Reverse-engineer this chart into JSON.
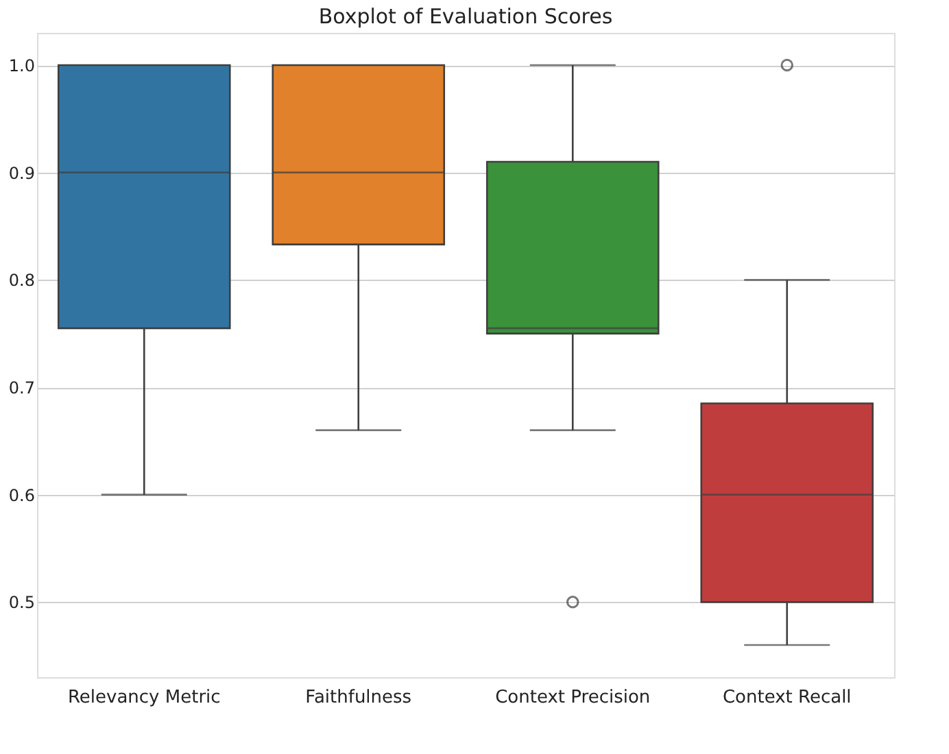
{
  "chart_data": {
    "type": "box",
    "title": "Boxplot of Evaluation Scores",
    "categories": [
      "Relevancy Metric",
      "Faithfulness",
      "Context Precision",
      "Context Recall"
    ],
    "colors": [
      "#3274a1",
      "#e1812c",
      "#3a923a",
      "#c03d3e"
    ],
    "boxes": [
      {
        "low": 0.6,
        "q1": 0.755,
        "median": 0.9,
        "q3": 1.0,
        "high": 1.0
      },
      {
        "low": 0.66,
        "q1": 0.833,
        "median": 0.9,
        "q3": 1.0,
        "high": 1.0
      },
      {
        "low": 0.66,
        "q1": 0.75,
        "median": 0.755,
        "q3": 0.91,
        "high": 1.0,
        "outliers": [
          0.5
        ]
      },
      {
        "low": 0.46,
        "q1": 0.5,
        "median": 0.6,
        "q3": 0.685,
        "high": 0.8,
        "outliers": [
          1.0
        ]
      }
    ],
    "ylim": [
      0.43,
      1.03
    ],
    "yticks": [
      {
        "value": 0.5,
        "label": "0.5"
      },
      {
        "value": 0.6,
        "label": "0.6"
      },
      {
        "value": 0.7,
        "label": "0.7"
      },
      {
        "value": 0.8,
        "label": "0.8"
      },
      {
        "value": 0.9,
        "label": "0.9"
      },
      {
        "value": 1.0,
        "label": "1.0"
      }
    ],
    "grid": "y"
  }
}
